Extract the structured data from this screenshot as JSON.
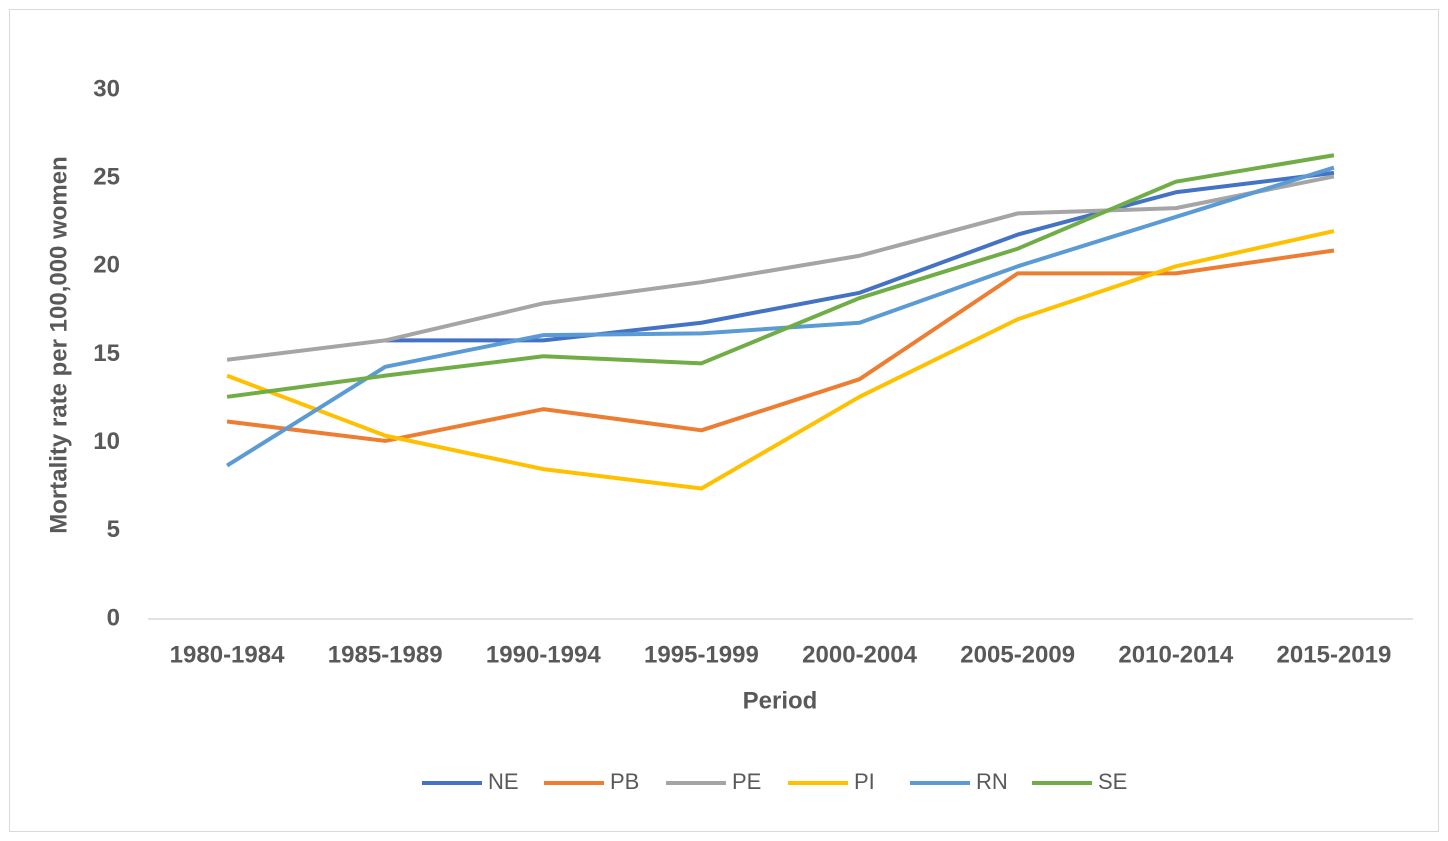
{
  "chart_data": {
    "type": "line",
    "x_label": "Period",
    "y_label": "Mortality rate per 100,000 women",
    "categories": [
      "1980-1984",
      "1985-1989",
      "1990-1994",
      "1995-1999",
      "2000-2004",
      "2005-2009",
      "2010-2014",
      "2015-2019"
    ],
    "series": [
      {
        "name": "NE",
        "color": "#4472c4",
        "values": [
          null,
          15.8,
          15.8,
          16.8,
          18.5,
          21.8,
          24.2,
          25.3
        ]
      },
      {
        "name": "PB",
        "color": "#ed7d31",
        "values": [
          11.2,
          10.1,
          11.9,
          10.7,
          13.6,
          19.6,
          19.6,
          20.9
        ]
      },
      {
        "name": "PE",
        "color": "#a5a5a5",
        "values": [
          14.7,
          15.8,
          17.9,
          19.1,
          20.6,
          23.0,
          23.3,
          25.1
        ]
      },
      {
        "name": "PI",
        "color": "#ffc000",
        "values": [
          13.8,
          10.4,
          8.5,
          7.4,
          12.6,
          17.0,
          20.0,
          22.0
        ]
      },
      {
        "name": "RN",
        "color": "#5b9bd5",
        "values": [
          8.7,
          14.3,
          16.1,
          16.2,
          16.8,
          20.0,
          22.8,
          25.6
        ]
      },
      {
        "name": "SE",
        "color": "#70ad47",
        "values": [
          12.6,
          13.8,
          14.9,
          14.5,
          18.2,
          21.0,
          24.8,
          26.3
        ]
      }
    ],
    "ylim": [
      0,
      30
    ],
    "yticks": [
      0,
      5,
      10,
      15,
      20,
      25,
      30
    ],
    "grid": false,
    "legend": "bottom"
  }
}
